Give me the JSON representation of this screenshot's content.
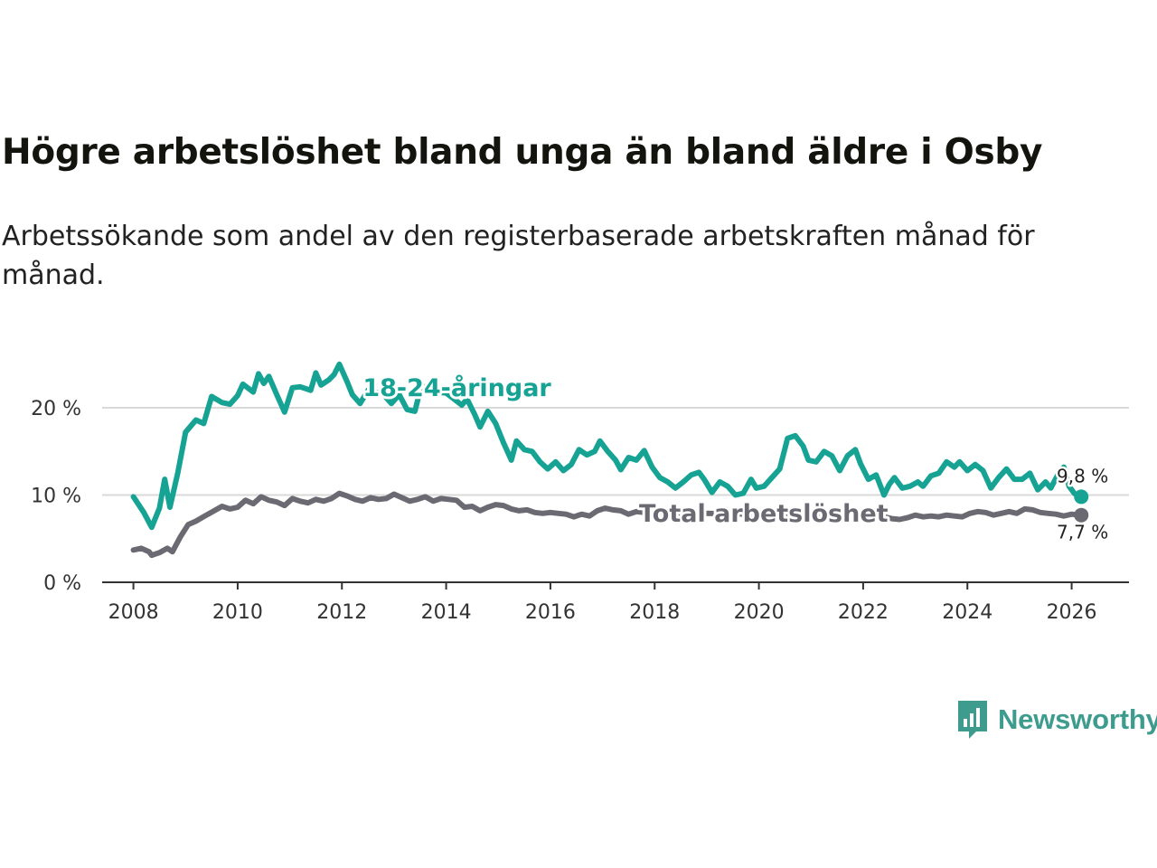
{
  "title": "Högre arbetslöshet bland unga än bland äldre i Osby",
  "subtitle": "Arbetssökande som andel av den registerbaserade arbetskraften månad för månad.",
  "brand": {
    "name": "Newsworthy",
    "color": "#3e9c8e"
  },
  "chart_data": {
    "type": "line",
    "title": "Högre arbetslöshet bland unga än bland äldre i Osby",
    "xlabel": "",
    "ylabel": "",
    "xlim": [
      2007.4,
      2027.1
    ],
    "ylim": [
      0,
      20
    ],
    "x_ticks": [
      2008,
      2010,
      2012,
      2014,
      2016,
      2018,
      2020,
      2022,
      2024,
      2026
    ],
    "x_tick_labels": [
      "2008",
      "2010",
      "2012",
      "2014",
      "2016",
      "2018",
      "2020",
      "2022",
      "2024",
      "2026"
    ],
    "y_ticks": [
      0,
      10,
      20
    ],
    "y_tick_labels": [
      "0 %",
      "10 %",
      "20 %"
    ],
    "grid": "horizontal",
    "series": [
      {
        "name": "18-24-åringar",
        "color": "#16a394",
        "points": [
          [
            2008.0,
            9.8
          ],
          [
            2008.2,
            8.0
          ],
          [
            2008.35,
            6.3
          ],
          [
            2008.5,
            8.5
          ],
          [
            2008.6,
            11.8
          ],
          [
            2008.7,
            8.6
          ],
          [
            2008.85,
            12.5
          ],
          [
            2009.0,
            17.2
          ],
          [
            2009.2,
            18.6
          ],
          [
            2009.35,
            18.2
          ],
          [
            2009.5,
            21.3
          ],
          [
            2009.7,
            20.6
          ],
          [
            2009.85,
            20.4
          ],
          [
            2010.0,
            21.4
          ],
          [
            2010.1,
            22.7
          ],
          [
            2010.3,
            21.8
          ],
          [
            2010.4,
            23.9
          ],
          [
            2010.5,
            22.8
          ],
          [
            2010.6,
            23.6
          ],
          [
            2010.75,
            21.5
          ],
          [
            2010.9,
            19.5
          ],
          [
            2011.05,
            22.3
          ],
          [
            2011.2,
            22.4
          ],
          [
            2011.4,
            22.0
          ],
          [
            2011.5,
            24.0
          ],
          [
            2011.6,
            22.6
          ],
          [
            2011.75,
            23.2
          ],
          [
            2011.85,
            23.8
          ],
          [
            2011.95,
            25.0
          ],
          [
            2012.1,
            23.0
          ],
          [
            2012.2,
            21.5
          ],
          [
            2012.35,
            20.5
          ],
          [
            2012.5,
            22.0
          ],
          [
            2012.65,
            21.8
          ],
          [
            2012.8,
            21.5
          ],
          [
            2012.95,
            20.5
          ],
          [
            2013.1,
            21.5
          ],
          [
            2013.25,
            19.8
          ],
          [
            2013.4,
            19.6
          ],
          [
            2013.5,
            22.0
          ],
          [
            2013.65,
            22.6
          ],
          [
            2013.8,
            21.8
          ],
          [
            2014.0,
            21.7
          ],
          [
            2014.15,
            21.0
          ],
          [
            2014.3,
            20.3
          ],
          [
            2014.4,
            21.0
          ],
          [
            2014.55,
            19.2
          ],
          [
            2014.65,
            17.8
          ],
          [
            2014.8,
            19.6
          ],
          [
            2014.95,
            18.2
          ],
          [
            2015.1,
            16.0
          ],
          [
            2015.25,
            14.0
          ],
          [
            2015.35,
            16.2
          ],
          [
            2015.5,
            15.2
          ],
          [
            2015.65,
            15.0
          ],
          [
            2015.8,
            13.8
          ],
          [
            2015.95,
            13.0
          ],
          [
            2016.1,
            13.8
          ],
          [
            2016.25,
            12.8
          ],
          [
            2016.4,
            13.5
          ],
          [
            2016.55,
            15.2
          ],
          [
            2016.7,
            14.6
          ],
          [
            2016.85,
            15.0
          ],
          [
            2016.95,
            16.2
          ],
          [
            2017.1,
            15.0
          ],
          [
            2017.25,
            14.0
          ],
          [
            2017.35,
            12.9
          ],
          [
            2017.5,
            14.3
          ],
          [
            2017.65,
            14.0
          ],
          [
            2017.8,
            15.1
          ],
          [
            2017.95,
            13.2
          ],
          [
            2018.1,
            12.0
          ],
          [
            2018.25,
            11.5
          ],
          [
            2018.4,
            10.8
          ],
          [
            2018.55,
            11.5
          ],
          [
            2018.7,
            12.3
          ],
          [
            2018.85,
            12.6
          ],
          [
            2018.95,
            11.8
          ],
          [
            2019.1,
            10.3
          ],
          [
            2019.25,
            11.5
          ],
          [
            2019.4,
            11.0
          ],
          [
            2019.55,
            10.0
          ],
          [
            2019.7,
            10.2
          ],
          [
            2019.85,
            11.8
          ],
          [
            2019.95,
            10.8
          ],
          [
            2020.1,
            11.0
          ],
          [
            2020.25,
            12.0
          ],
          [
            2020.4,
            13.0
          ],
          [
            2020.55,
            16.5
          ],
          [
            2020.7,
            16.8
          ],
          [
            2020.85,
            15.6
          ],
          [
            2020.95,
            14.0
          ],
          [
            2021.1,
            13.8
          ],
          [
            2021.25,
            15.0
          ],
          [
            2021.4,
            14.5
          ],
          [
            2021.55,
            12.8
          ],
          [
            2021.7,
            14.5
          ],
          [
            2021.85,
            15.2
          ],
          [
            2021.95,
            13.6
          ],
          [
            2022.1,
            11.8
          ],
          [
            2022.25,
            12.3
          ],
          [
            2022.4,
            10.0
          ],
          [
            2022.5,
            11.2
          ],
          [
            2022.6,
            12.0
          ],
          [
            2022.75,
            10.8
          ],
          [
            2022.9,
            11.0
          ],
          [
            2023.05,
            11.5
          ],
          [
            2023.15,
            11.0
          ],
          [
            2023.3,
            12.2
          ],
          [
            2023.45,
            12.5
          ],
          [
            2023.6,
            13.8
          ],
          [
            2023.75,
            13.2
          ],
          [
            2023.85,
            13.8
          ],
          [
            2024.0,
            12.8
          ],
          [
            2024.15,
            13.5
          ],
          [
            2024.3,
            12.8
          ],
          [
            2024.45,
            10.8
          ],
          [
            2024.6,
            12.0
          ],
          [
            2024.75,
            13.0
          ],
          [
            2024.9,
            11.8
          ],
          [
            2025.05,
            11.8
          ],
          [
            2025.2,
            12.5
          ],
          [
            2025.35,
            10.6
          ],
          [
            2025.5,
            11.5
          ],
          [
            2025.6,
            10.8
          ],
          [
            2025.75,
            12.5
          ],
          [
            2025.85,
            13.2
          ],
          [
            2025.95,
            11.0
          ],
          [
            2026.05,
            10.2
          ],
          [
            2026.15,
            9.8
          ]
        ],
        "end_value": 9.8,
        "end_label": "9,8 %"
      },
      {
        "name": "Total arbetslöshet",
        "color": "#6b6a72",
        "points": [
          [
            2008.0,
            3.7
          ],
          [
            2008.15,
            3.9
          ],
          [
            2008.3,
            3.5
          ],
          [
            2008.35,
            3.1
          ],
          [
            2008.5,
            3.4
          ],
          [
            2008.65,
            3.9
          ],
          [
            2008.75,
            3.5
          ],
          [
            2008.9,
            5.2
          ],
          [
            2009.05,
            6.6
          ],
          [
            2009.2,
            7.0
          ],
          [
            2009.4,
            7.7
          ],
          [
            2009.55,
            8.2
          ],
          [
            2009.7,
            8.7
          ],
          [
            2009.85,
            8.4
          ],
          [
            2010.0,
            8.6
          ],
          [
            2010.15,
            9.4
          ],
          [
            2010.3,
            9.0
          ],
          [
            2010.45,
            9.8
          ],
          [
            2010.6,
            9.4
          ],
          [
            2010.75,
            9.2
          ],
          [
            2010.9,
            8.8
          ],
          [
            2011.05,
            9.6
          ],
          [
            2011.2,
            9.3
          ],
          [
            2011.35,
            9.1
          ],
          [
            2011.5,
            9.5
          ],
          [
            2011.65,
            9.3
          ],
          [
            2011.8,
            9.6
          ],
          [
            2011.95,
            10.2
          ],
          [
            2012.1,
            9.9
          ],
          [
            2012.25,
            9.5
          ],
          [
            2012.4,
            9.3
          ],
          [
            2012.55,
            9.7
          ],
          [
            2012.7,
            9.5
          ],
          [
            2012.85,
            9.6
          ],
          [
            2013.0,
            10.1
          ],
          [
            2013.15,
            9.7
          ],
          [
            2013.3,
            9.3
          ],
          [
            2013.45,
            9.5
          ],
          [
            2013.6,
            9.8
          ],
          [
            2013.75,
            9.3
          ],
          [
            2013.9,
            9.6
          ],
          [
            2014.05,
            9.5
          ],
          [
            2014.2,
            9.4
          ],
          [
            2014.35,
            8.6
          ],
          [
            2014.5,
            8.7
          ],
          [
            2014.65,
            8.2
          ],
          [
            2014.8,
            8.6
          ],
          [
            2014.95,
            8.9
          ],
          [
            2015.1,
            8.8
          ],
          [
            2015.25,
            8.4
          ],
          [
            2015.4,
            8.2
          ],
          [
            2015.55,
            8.3
          ],
          [
            2015.7,
            8.0
          ],
          [
            2015.85,
            7.9
          ],
          [
            2016.0,
            8.0
          ],
          [
            2016.15,
            7.9
          ],
          [
            2016.3,
            7.8
          ],
          [
            2016.45,
            7.5
          ],
          [
            2016.6,
            7.8
          ],
          [
            2016.75,
            7.6
          ],
          [
            2016.9,
            8.2
          ],
          [
            2017.05,
            8.5
          ],
          [
            2017.2,
            8.3
          ],
          [
            2017.35,
            8.2
          ],
          [
            2017.5,
            7.8
          ],
          [
            2017.65,
            8.1
          ],
          [
            2017.8,
            8.0
          ],
          [
            2017.95,
            8.2
          ],
          [
            2018.1,
            8.0
          ],
          [
            2022.4,
            7.5
          ],
          [
            2022.55,
            7.3
          ],
          [
            2022.7,
            7.2
          ],
          [
            2022.85,
            7.4
          ],
          [
            2023.0,
            7.7
          ],
          [
            2023.15,
            7.5
          ],
          [
            2023.3,
            7.6
          ],
          [
            2023.45,
            7.5
          ],
          [
            2023.6,
            7.7
          ],
          [
            2023.75,
            7.6
          ],
          [
            2023.9,
            7.5
          ],
          [
            2024.05,
            7.9
          ],
          [
            2024.2,
            8.1
          ],
          [
            2024.35,
            8.0
          ],
          [
            2024.5,
            7.7
          ],
          [
            2024.65,
            7.9
          ],
          [
            2024.8,
            8.1
          ],
          [
            2024.95,
            7.9
          ],
          [
            2025.1,
            8.4
          ],
          [
            2025.25,
            8.3
          ],
          [
            2025.4,
            8.0
          ],
          [
            2025.55,
            7.9
          ],
          [
            2025.7,
            7.8
          ],
          [
            2025.85,
            7.6
          ],
          [
            2026.0,
            7.8
          ],
          [
            2026.15,
            7.7
          ]
        ],
        "end_value": 7.7,
        "end_label": "7,7 %"
      }
    ]
  }
}
